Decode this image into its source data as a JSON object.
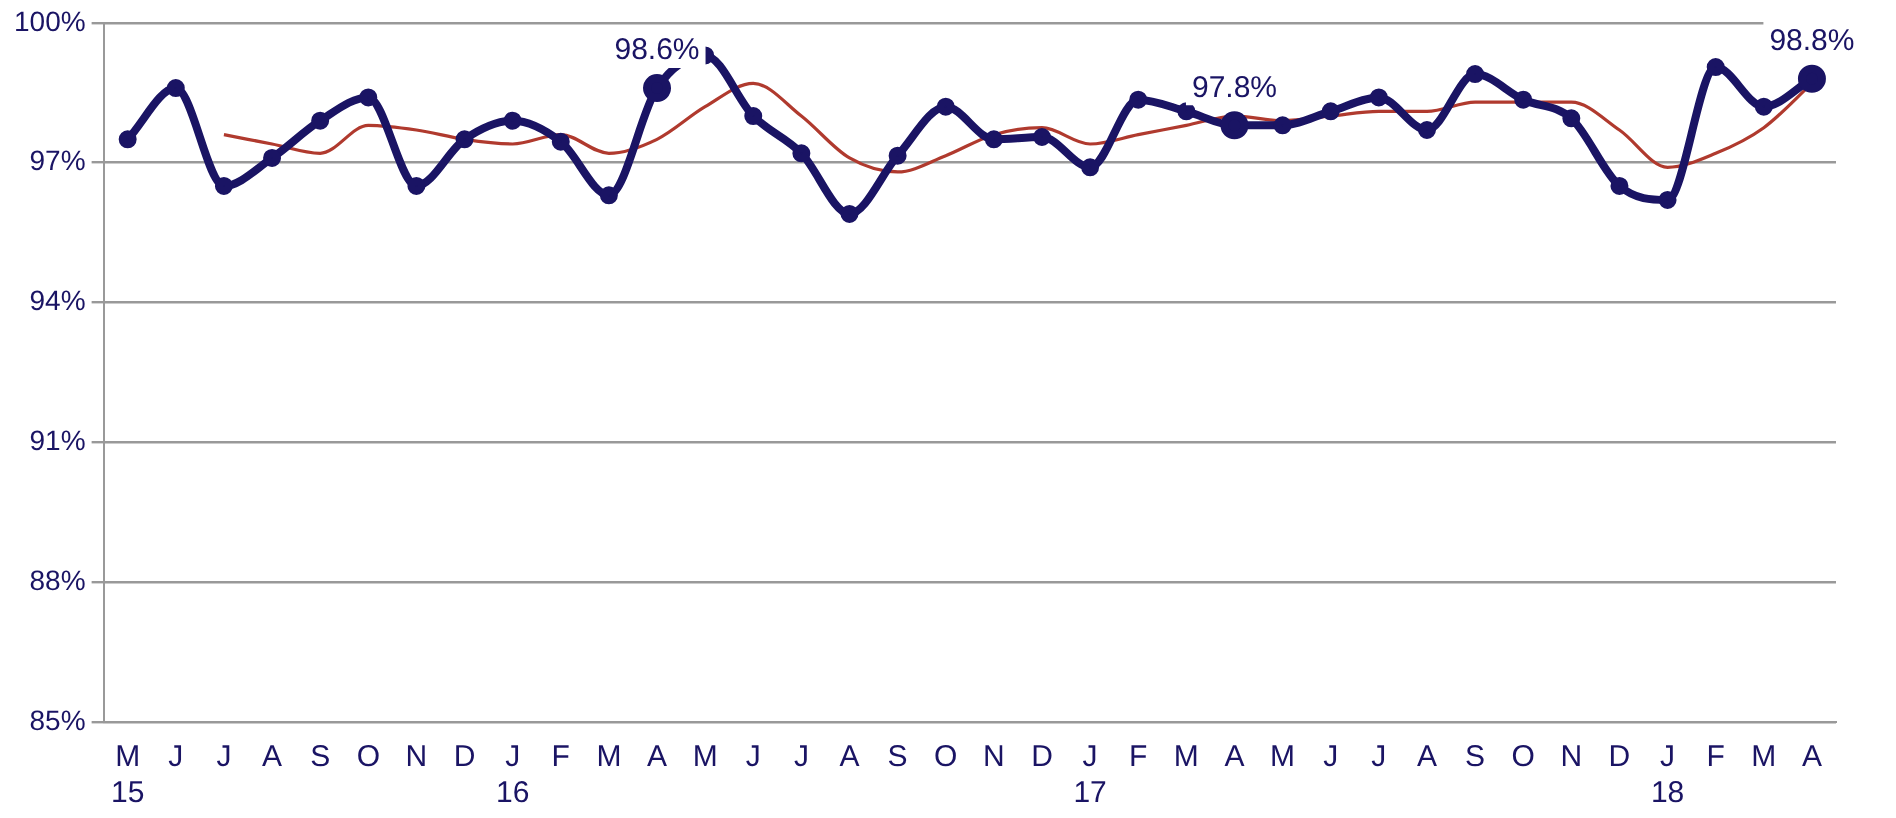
{
  "chart_data": {
    "type": "line",
    "categories": [
      "M\n15",
      "J",
      "J",
      "A",
      "S",
      "O",
      "N",
      "D",
      "J\n16",
      "F",
      "M",
      "A",
      "M",
      "J",
      "J",
      "A",
      "S",
      "O",
      "N",
      "D",
      "J\n17",
      "F",
      "M",
      "A",
      "M",
      "J",
      "J",
      "A",
      "S",
      "O",
      "N",
      "D",
      "J\n18",
      "F",
      "M",
      "A"
    ],
    "series": [
      {
        "color": "#1a1464",
        "marker": "circle",
        "values": [
          97.5,
          98.6,
          96.5,
          97.1,
          97.9,
          98.4,
          96.5,
          97.5,
          97.9,
          97.45,
          96.3,
          98.6,
          99.3,
          98.0,
          97.2,
          95.9,
          97.15,
          98.2,
          97.5,
          97.55,
          96.9,
          98.35,
          98.1,
          97.8,
          97.8,
          98.1,
          98.4,
          97.7,
          98.9,
          98.35,
          97.95,
          96.5,
          96.2,
          99.05,
          98.2,
          98.8
        ],
        "value_labels": [
          null,
          null,
          null,
          null,
          null,
          null,
          null,
          null,
          null,
          null,
          null,
          "98.6%",
          null,
          null,
          null,
          null,
          null,
          null,
          null,
          null,
          null,
          null,
          null,
          "97.8%",
          null,
          null,
          null,
          null,
          null,
          null,
          null,
          null,
          null,
          null,
          null,
          "98.8%"
        ]
      },
      {
        "color": "#b03a2e",
        "marker": "none",
        "values": [
          null,
          null,
          97.6,
          97.4,
          97.2,
          97.8,
          97.7,
          97.5,
          97.4,
          97.6,
          97.2,
          97.5,
          98.2,
          98.7,
          98.0,
          97.1,
          96.8,
          97.15,
          97.6,
          97.75,
          97.4,
          97.6,
          97.8,
          98.0,
          97.9,
          98.0,
          98.1,
          98.1,
          98.3,
          98.3,
          98.3,
          97.7,
          96.9,
          97.2,
          97.75,
          98.7
        ]
      }
    ],
    "ylim": [
      85,
      100
    ],
    "yticks": [
      {
        "value": 85,
        "label": "85%"
      },
      {
        "value": 88,
        "label": "88%"
      },
      {
        "value": 91,
        "label": "91%"
      },
      {
        "value": 94,
        "label": "94%"
      },
      {
        "value": 97,
        "label": "97%"
      },
      {
        "value": 100,
        "label": "100%"
      }
    ],
    "grid": "y",
    "legend": false
  }
}
